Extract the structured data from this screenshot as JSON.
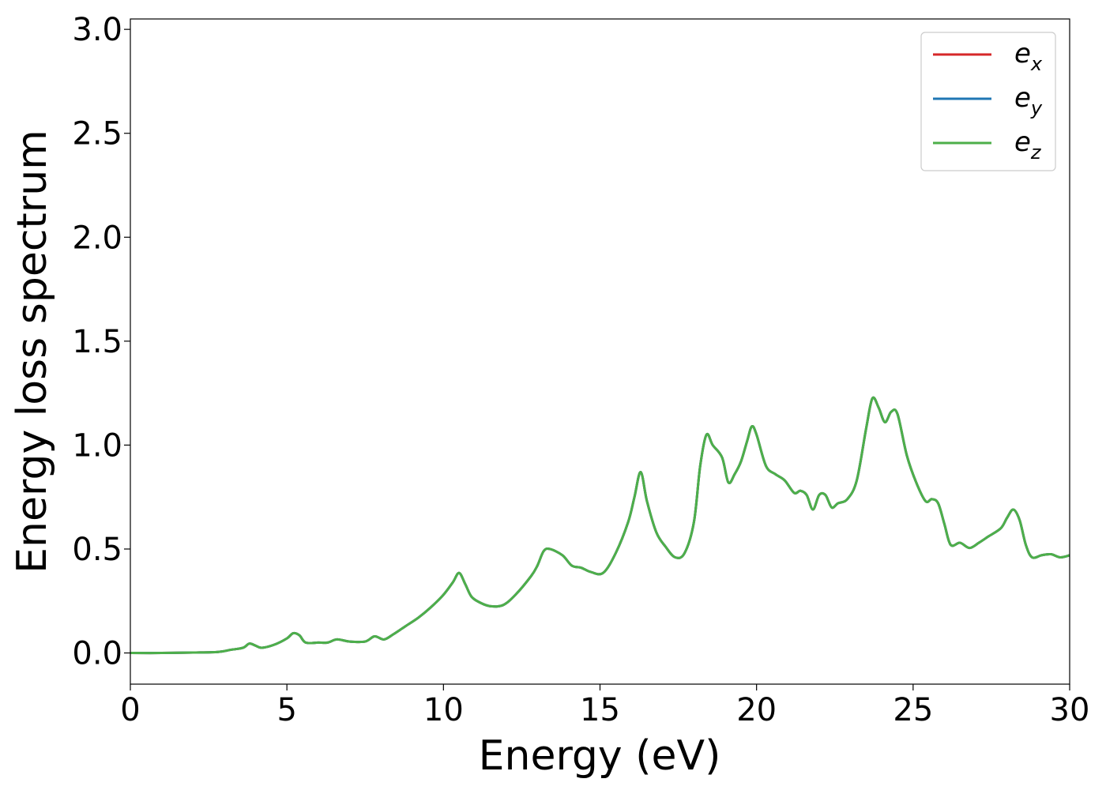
{
  "chart_data": {
    "type": "line",
    "xlabel": "Energy (eV)",
    "ylabel": "Energy loss spectrum",
    "xlim": [
      0,
      30
    ],
    "ylim": [
      -0.15,
      3.05
    ],
    "xticks": [
      0,
      5,
      10,
      15,
      20,
      25,
      30
    ],
    "xtick_labels": [
      "0",
      "5",
      "10",
      "15",
      "20",
      "25",
      "30"
    ],
    "yticks": [
      0.0,
      0.5,
      1.0,
      1.5,
      2.0,
      2.5,
      3.0
    ],
    "ytick_labels": [
      "0.0",
      "0.5",
      "1.0",
      "1.5",
      "2.0",
      "2.5",
      "3.0"
    ],
    "grid": false,
    "legend_position": "top-right",
    "x": [
      0,
      1,
      2,
      2.8,
      3.2,
      3.6,
      3.8,
      4.0,
      4.2,
      4.6,
      5.0,
      5.2,
      5.4,
      5.6,
      6.0,
      6.3,
      6.6,
      7.0,
      7.5,
      7.8,
      8.1,
      8.4,
      8.8,
      9.2,
      9.6,
      10.0,
      10.3,
      10.5,
      10.7,
      10.9,
      11.2,
      11.5,
      11.9,
      12.3,
      12.8,
      13.0,
      13.2,
      13.4,
      13.8,
      14.1,
      14.4,
      14.7,
      15.1,
      15.5,
      15.9,
      16.1,
      16.3,
      16.5,
      16.8,
      17.1,
      17.4,
      17.7,
      18.0,
      18.2,
      18.4,
      18.6,
      18.9,
      19.1,
      19.3,
      19.5,
      19.7,
      19.85,
      20.0,
      20.3,
      20.6,
      20.9,
      21.2,
      21.4,
      21.6,
      21.8,
      22.0,
      22.2,
      22.4,
      22.6,
      22.9,
      23.2,
      23.5,
      23.7,
      23.9,
      24.1,
      24.3,
      24.5,
      24.8,
      25.1,
      25.4,
      25.6,
      25.8,
      26.0,
      26.2,
      26.5,
      26.8,
      27.1,
      27.4,
      27.8,
      28.0,
      28.2,
      28.4,
      28.6,
      28.8,
      29.1,
      29.4,
      29.7,
      30.0
    ],
    "series": [
      {
        "name": "e_x",
        "label_base": "e",
        "label_sub": "x",
        "color": "#d62728",
        "values": [
          0.0,
          0.0,
          0.002,
          0.005,
          0.015,
          0.025,
          0.045,
          0.035,
          0.025,
          0.04,
          0.07,
          0.095,
          0.085,
          0.05,
          0.05,
          0.05,
          0.065,
          0.055,
          0.055,
          0.08,
          0.065,
          0.09,
          0.13,
          0.17,
          0.22,
          0.28,
          0.34,
          0.385,
          0.33,
          0.27,
          0.24,
          0.225,
          0.23,
          0.28,
          0.37,
          0.42,
          0.49,
          0.5,
          0.47,
          0.42,
          0.41,
          0.39,
          0.385,
          0.48,
          0.63,
          0.75,
          0.87,
          0.73,
          0.58,
          0.51,
          0.46,
          0.48,
          0.63,
          0.9,
          1.05,
          1.0,
          0.94,
          0.82,
          0.86,
          0.92,
          1.02,
          1.09,
          1.05,
          0.9,
          0.86,
          0.83,
          0.77,
          0.78,
          0.76,
          0.69,
          0.76,
          0.76,
          0.7,
          0.72,
          0.74,
          0.83,
          1.08,
          1.225,
          1.18,
          1.11,
          1.16,
          1.15,
          0.95,
          0.82,
          0.73,
          0.74,
          0.72,
          0.62,
          0.52,
          0.53,
          0.505,
          0.53,
          0.56,
          0.6,
          0.65,
          0.69,
          0.64,
          0.52,
          0.46,
          0.47,
          0.475,
          0.46,
          0.47
        ]
      },
      {
        "name": "e_y",
        "label_base": "e",
        "label_sub": "y",
        "color": "#1f77b4",
        "values": [
          0.0,
          0.0,
          0.002,
          0.005,
          0.015,
          0.025,
          0.045,
          0.035,
          0.025,
          0.04,
          0.07,
          0.095,
          0.085,
          0.05,
          0.05,
          0.05,
          0.065,
          0.055,
          0.055,
          0.08,
          0.065,
          0.09,
          0.13,
          0.17,
          0.22,
          0.28,
          0.34,
          0.385,
          0.33,
          0.27,
          0.24,
          0.225,
          0.23,
          0.28,
          0.37,
          0.42,
          0.49,
          0.5,
          0.47,
          0.42,
          0.41,
          0.39,
          0.385,
          0.48,
          0.63,
          0.75,
          0.87,
          0.73,
          0.58,
          0.51,
          0.46,
          0.48,
          0.63,
          0.9,
          1.05,
          1.0,
          0.94,
          0.82,
          0.86,
          0.92,
          1.02,
          1.09,
          1.05,
          0.9,
          0.86,
          0.83,
          0.77,
          0.78,
          0.76,
          0.69,
          0.76,
          0.76,
          0.7,
          0.72,
          0.74,
          0.83,
          1.08,
          1.225,
          1.18,
          1.11,
          1.16,
          1.15,
          0.95,
          0.82,
          0.73,
          0.74,
          0.72,
          0.62,
          0.52,
          0.53,
          0.505,
          0.53,
          0.56,
          0.6,
          0.65,
          0.69,
          0.64,
          0.52,
          0.46,
          0.47,
          0.475,
          0.46,
          0.47
        ]
      },
      {
        "name": "e_z",
        "label_base": "e",
        "label_sub": "z",
        "color": "#4daf4a",
        "values": [
          0.0,
          0.0,
          0.002,
          0.005,
          0.015,
          0.025,
          0.045,
          0.035,
          0.025,
          0.04,
          0.07,
          0.095,
          0.085,
          0.05,
          0.05,
          0.05,
          0.065,
          0.055,
          0.055,
          0.08,
          0.065,
          0.09,
          0.13,
          0.17,
          0.22,
          0.28,
          0.34,
          0.385,
          0.33,
          0.27,
          0.24,
          0.225,
          0.23,
          0.28,
          0.37,
          0.42,
          0.49,
          0.5,
          0.47,
          0.42,
          0.41,
          0.39,
          0.385,
          0.48,
          0.63,
          0.75,
          0.87,
          0.73,
          0.58,
          0.51,
          0.46,
          0.48,
          0.63,
          0.9,
          1.05,
          1.0,
          0.94,
          0.82,
          0.86,
          0.92,
          1.02,
          1.09,
          1.05,
          0.9,
          0.86,
          0.83,
          0.77,
          0.78,
          0.76,
          0.69,
          0.76,
          0.76,
          0.7,
          0.72,
          0.74,
          0.83,
          1.08,
          1.225,
          1.18,
          1.11,
          1.16,
          1.15,
          0.95,
          0.82,
          0.73,
          0.74,
          0.72,
          0.62,
          0.52,
          0.53,
          0.505,
          0.53,
          0.56,
          0.6,
          0.65,
          0.69,
          0.64,
          0.52,
          0.46,
          0.47,
          0.475,
          0.46,
          0.47
        ]
      }
    ]
  }
}
